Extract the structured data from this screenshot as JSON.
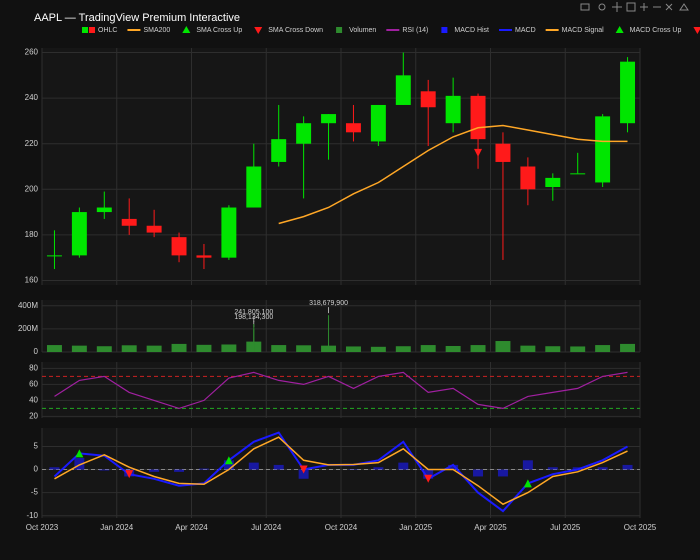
{
  "chart_data": {
    "type": "candlestick",
    "title": "AAPL — TradingView Premium Interactive",
    "x": [
      "2023-10",
      "2023-11",
      "2023-12",
      "2024-01",
      "2024-02",
      "2024-03",
      "2024-04",
      "2024-05",
      "2024-06",
      "2024-07",
      "2024-08",
      "2024-09",
      "2024-10",
      "2024-11",
      "2024-12",
      "2025-01",
      "2025-02",
      "2025-03",
      "2025-04",
      "2025-05",
      "2025-06",
      "2025-07",
      "2025-08",
      "2025-09"
    ],
    "xlim": [
      "2023-10",
      "2025-10"
    ],
    "xticks": [
      {
        "value": "2023-10",
        "label": "Oct 2023"
      },
      {
        "value": "2024-01",
        "label": "Jan 2024"
      },
      {
        "value": "2024-04",
        "label": "Apr 2024"
      },
      {
        "value": "2024-07",
        "label": "Jul 2024"
      },
      {
        "value": "2024-10",
        "label": "Oct 2024"
      },
      {
        "value": "2025-01",
        "label": "Jan 2025"
      },
      {
        "value": "2025-04",
        "label": "Apr 2025"
      },
      {
        "value": "2025-07",
        "label": "Jul 2025"
      },
      {
        "value": "2025-10",
        "label": "Oct 2025"
      }
    ],
    "ohlc": {
      "name": "OHLC",
      "up_color": "#00e600",
      "down_color": "#ff1a1a",
      "open": [
        171,
        171,
        190,
        187,
        184,
        179,
        171,
        170,
        192,
        212,
        220,
        229,
        229,
        221,
        237,
        243,
        229,
        241,
        220,
        210,
        201,
        207,
        203,
        229
      ],
      "high": [
        182,
        192,
        199,
        196,
        191,
        181,
        176,
        193,
        220,
        237,
        232,
        233,
        237,
        237,
        260,
        248,
        249,
        242,
        225,
        214,
        207,
        216,
        233,
        258
      ],
      "low": [
        165,
        170,
        187,
        180,
        179,
        168,
        165,
        169,
        192,
        210,
        196,
        213,
        221,
        219,
        237,
        219,
        225,
        209,
        169,
        193,
        195,
        207,
        201,
        225
      ],
      "close": [
        171,
        190,
        192,
        184,
        181,
        171,
        170,
        192,
        210,
        222,
        229,
        233,
        225,
        237,
        250,
        236,
        241,
        222,
        212,
        200,
        205,
        207,
        232,
        256
      ]
    },
    "sma": {
      "name": "SMA200",
      "color": "#ffa726",
      "values": [
        null,
        null,
        null,
        null,
        null,
        null,
        null,
        null,
        null,
        185,
        188,
        192,
        198,
        203,
        210,
        217,
        223,
        227,
        228,
        226,
        224,
        222,
        221,
        221
      ]
    },
    "sma_cross_up": {
      "name": "SMA Cross Up",
      "color": "#00e600",
      "x": [
        "2025-08"
      ],
      "values": [
        224
      ]
    },
    "sma_cross_down": {
      "name": "SMA Cross Down",
      "color": "#ff1a1a",
      "x": [
        "2025-03"
      ],
      "values": [
        216
      ]
    },
    "ylim": [
      158,
      262
    ],
    "yticks": [
      160,
      180,
      200,
      220,
      240,
      260
    ],
    "grid": true,
    "volume": {
      "name": "Volumen",
      "color": "#2e8b2e",
      "values": [
        60000000,
        55000000,
        50000000,
        58000000,
        55000000,
        70000000,
        62000000,
        65000000,
        90000000,
        60000000,
        58000000,
        55000000,
        48000000,
        45000000,
        50000000,
        60000000,
        52000000,
        60000000,
        95000000,
        55000000,
        50000000,
        48000000,
        60000000,
        70000000
      ],
      "ylim": [
        0,
        450000000
      ],
      "yticks": [
        0,
        {
          "value": 200000000,
          "label": "200M"
        },
        {
          "value": 400000000,
          "label": "400M"
        }
      ],
      "annotations": [
        {
          "x": "2024-06",
          "value": 198134300,
          "label": "198,134,300"
        },
        {
          "x": "2024-06",
          "value": 241805100,
          "label": "241,805,100"
        },
        {
          "x": "2024-09",
          "value": 318679900,
          "label": "318,679,900"
        }
      ]
    },
    "rsi": {
      "name": "RSI (14)",
      "color": "#a020a0",
      "values": [
        45,
        65,
        70,
        50,
        40,
        30,
        40,
        68,
        75,
        65,
        60,
        70,
        55,
        70,
        75,
        50,
        55,
        35,
        30,
        45,
        50,
        55,
        70,
        75
      ],
      "ylim": [
        18,
        88
      ],
      "yticks": [
        20,
        40,
        60,
        80
      ],
      "overbought": 70,
      "oversold": 30,
      "overbought_color": "#cc2222",
      "oversold_color": "#22aa22"
    },
    "macd": {
      "hist": {
        "name": "MACD Hist",
        "color": "#1a1aff",
        "values": [
          0.5,
          2.5,
          -0.2,
          -1.5,
          -0.5,
          -0.5,
          0.2,
          2,
          1.5,
          1,
          -2,
          0,
          -0.1,
          0.5,
          1.5,
          -2,
          1,
          -1.5,
          -1.5,
          2,
          0.5,
          0.5,
          0.5,
          1
        ]
      },
      "line": {
        "name": "MACD",
        "color": "#1a1aff",
        "values": [
          -1.5,
          3.5,
          3,
          -1,
          -2,
          -3.5,
          -3,
          2,
          6,
          8,
          0,
          1,
          1,
          2,
          6,
          -2,
          1,
          -5,
          -9,
          -3,
          -1,
          0,
          2,
          5
        ]
      },
      "signal": {
        "name": "MACD Signal",
        "color": "#ffa726",
        "values": [
          -2,
          1,
          3.2,
          0.5,
          -1.5,
          -3,
          -3.2,
          0,
          4.5,
          7,
          2,
          1,
          1.1,
          1.5,
          4.5,
          0,
          0,
          -3.5,
          -7.5,
          -5,
          -1.5,
          -0.5,
          1.5,
          4
        ]
      },
      "cross_up": {
        "name": "MACD Cross Up",
        "color": "#00e600",
        "x": [
          "2023-11",
          "2024-05",
          "2025-05"
        ],
        "values": [
          3.5,
          2,
          -3
        ]
      },
      "cross_down": {
        "name": "MACD Cross Down",
        "color": "#ff1a1a",
        "x": [
          "2024-01",
          "2024-08",
          "2025-01"
        ],
        "values": [
          -1,
          0,
          -2
        ]
      },
      "ylim": [
        -10.5,
        9
      ],
      "yticks": [
        -10,
        -5,
        0,
        5
      ],
      "zero": 0
    }
  }
}
